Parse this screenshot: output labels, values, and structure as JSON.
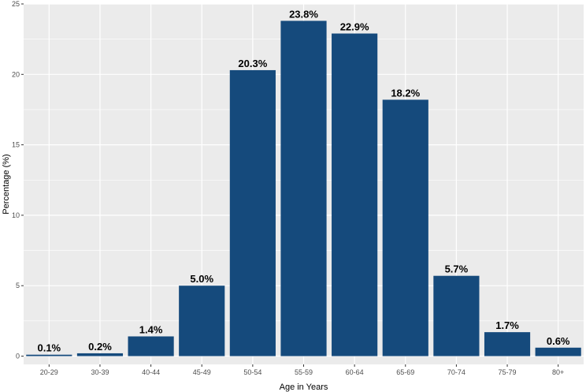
{
  "chart_data": {
    "type": "bar",
    "title": "",
    "xlabel": "Age in Years",
    "ylabel": "Percentage (%)",
    "categories": [
      "20-29",
      "30-39",
      "40-44",
      "45-49",
      "50-54",
      "55-59",
      "60-64",
      "65-69",
      "70-74",
      "75-79",
      "80+"
    ],
    "values": [
      0.1,
      0.2,
      1.4,
      5.0,
      20.3,
      23.8,
      22.9,
      18.2,
      5.7,
      1.7,
      0.6
    ],
    "data_labels": [
      "0.1%",
      "0.2%",
      "1.4%",
      "5.0%",
      "20.3%",
      "23.8%",
      "22.9%",
      "18.2%",
      "5.7%",
      "1.7%",
      "0.6%"
    ],
    "ylim": [
      0,
      25
    ],
    "yticks": [
      0,
      5,
      10,
      15,
      20,
      25
    ],
    "grid": true,
    "legend": "none",
    "colors": {
      "bar": "#154a7c",
      "panel": "#ebebeb",
      "grid": "#ffffff"
    }
  }
}
